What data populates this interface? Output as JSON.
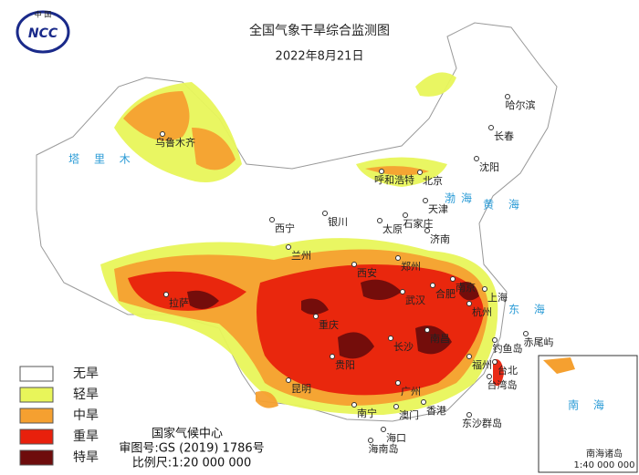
{
  "header": {
    "title": "全国气象干旱综合监测图",
    "date": "2022年8月21日",
    "logo": "NCC",
    "logo_top": "中 国"
  },
  "legend": {
    "items": [
      {
        "label": "无旱",
        "color": "#ffffff"
      },
      {
        "label": "轻旱",
        "color": "#e8f55a"
      },
      {
        "label": "中旱",
        "color": "#f5a030"
      },
      {
        "label": "重旱",
        "color": "#e8200c"
      },
      {
        "label": "特旱",
        "color": "#6e0c0c"
      }
    ]
  },
  "footer": {
    "org": "国家气候中心",
    "review": "审图号:GS (2019) 1786号",
    "scale": "比例尺:1:20 000 000"
  },
  "cities": [
    "乌鲁木齐",
    "呼和浩特",
    "北京",
    "哈尔滨",
    "长春",
    "沈阳",
    "天津",
    "石家庄",
    "太原",
    "济南",
    "西宁",
    "银川",
    "兰州",
    "郑州",
    "西安",
    "拉萨",
    "重庆",
    "武汉",
    "合肥",
    "南京",
    "上海",
    "杭州",
    "长沙",
    "南昌",
    "福州",
    "贵阳",
    "昆明",
    "南宁",
    "广州",
    "香港",
    "澳门",
    "海口",
    "台北",
    "台湾岛",
    "钓鱼岛",
    "赤尾屿",
    "东沙群岛",
    "海南岛"
  ],
  "seas": [
    "渤海",
    "黄 海",
    "东 海",
    "塔 里 木"
  ],
  "inset": {
    "sea": "南 海",
    "islands": "南海诸岛",
    "scale": "1:40 000 000"
  }
}
